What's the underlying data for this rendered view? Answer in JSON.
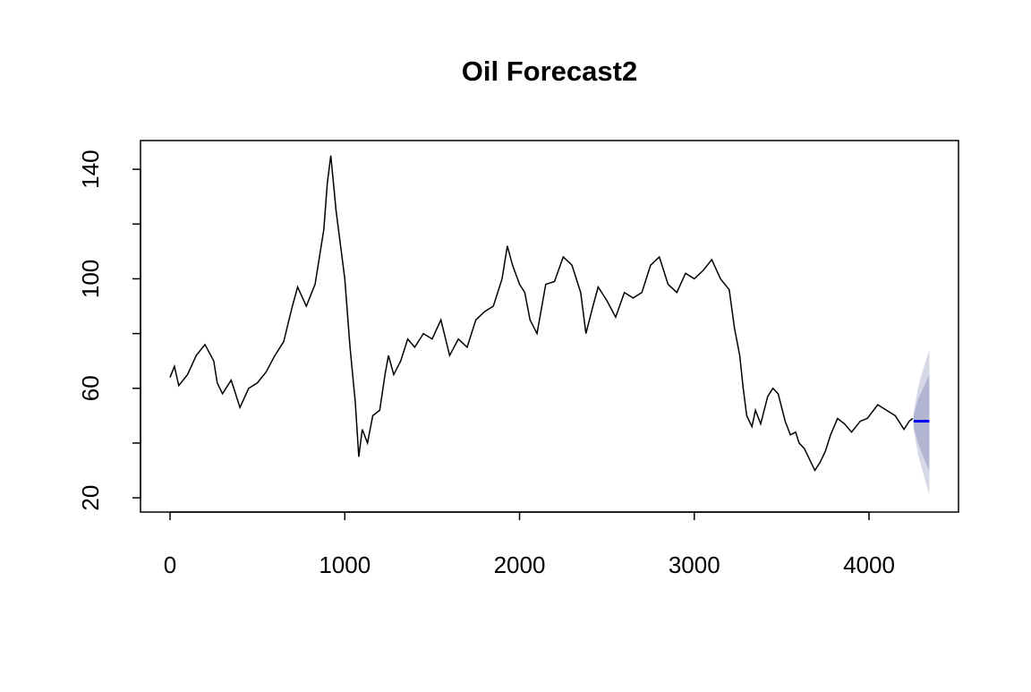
{
  "chart_data": {
    "type": "line",
    "title": "Oil Forecast2",
    "x": [
      0,
      25,
      50,
      100,
      150,
      200,
      250,
      270,
      300,
      350,
      400,
      450,
      500,
      550,
      600,
      650,
      700,
      730,
      780,
      830,
      860,
      880,
      900,
      920,
      950,
      980,
      1000,
      1030,
      1060,
      1080,
      1100,
      1130,
      1160,
      1200,
      1230,
      1250,
      1280,
      1320,
      1360,
      1400,
      1450,
      1500,
      1550,
      1600,
      1650,
      1700,
      1750,
      1800,
      1850,
      1900,
      1930,
      1960,
      2000,
      2030,
      2060,
      2100,
      2150,
      2200,
      2250,
      2300,
      2350,
      2380,
      2420,
      2450,
      2500,
      2550,
      2600,
      2650,
      2700,
      2750,
      2800,
      2850,
      2900,
      2950,
      3000,
      3050,
      3100,
      3150,
      3200,
      3230,
      3260,
      3280,
      3300,
      3330,
      3350,
      3380,
      3420,
      3450,
      3480,
      3520,
      3550,
      3580,
      3600,
      3630,
      3660,
      3690,
      3720,
      3750,
      3780,
      3820,
      3860,
      3900,
      3950,
      3990,
      4050,
      4100,
      4150,
      4200,
      4230,
      4250
    ],
    "series": [
      {
        "color": "#000000",
        "values": [
          64,
          68,
          61,
          65,
          72,
          76,
          70,
          62,
          58,
          63,
          53,
          60,
          62,
          66,
          72,
          77,
          90,
          97,
          90,
          98,
          110,
          118,
          135,
          145,
          125,
          110,
          100,
          75,
          55,
          35,
          45,
          40,
          50,
          52,
          65,
          72,
          65,
          70,
          78,
          75,
          80,
          78,
          85,
          72,
          78,
          75,
          85,
          88,
          90,
          100,
          112,
          105,
          98,
          95,
          85,
          80,
          98,
          99,
          108,
          105,
          95,
          80,
          90,
          97,
          92,
          86,
          95,
          93,
          95,
          105,
          108,
          98,
          95,
          102,
          100,
          103,
          107,
          100,
          96,
          82,
          72,
          60,
          50,
          46,
          52,
          47,
          57,
          60,
          58,
          48,
          43,
          44,
          40,
          38,
          34,
          30,
          33,
          37,
          43,
          49,
          47,
          44,
          48,
          49,
          54,
          52,
          50,
          45,
          48,
          49
        ]
      }
    ],
    "forecast": {
      "x": [
        4255,
        4280,
        4310,
        4345
      ],
      "mean": [
        48,
        48,
        48,
        48
      ],
      "lower80": [
        46,
        40,
        35,
        30
      ],
      "upper80": [
        50,
        56,
        60,
        65
      ],
      "lower95": [
        45,
        36,
        29,
        21
      ],
      "upper95": [
        51,
        60,
        67,
        74
      ],
      "mean_color": "#0000ff",
      "color80": "#b1b5d2",
      "color95": "#d6d8e6"
    },
    "xlim": [
      -169,
      4512
    ],
    "ylim": [
      14.8,
      150.5
    ],
    "xticks": [
      0,
      1000,
      2000,
      3000,
      4000
    ],
    "yticks": [
      20,
      60,
      100,
      140
    ],
    "yticks_unlabeled": [
      40,
      80,
      120
    ]
  }
}
